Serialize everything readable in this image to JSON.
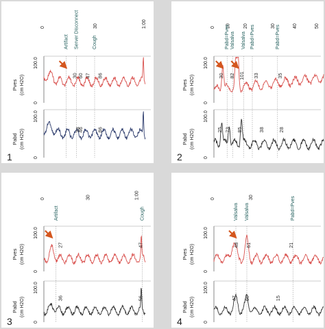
{
  "colors": {
    "pves": "#d9524f",
    "pabd_blue": "#2b3a6b",
    "pabd_dark": "#333333",
    "grid": "#666666",
    "event_label": "#1f5c5a",
    "number_label": "#333333",
    "arrow": "#d4561e"
  },
  "axis_titles": {
    "pves": [
      "Pves",
      "(cm H2O)"
    ],
    "pabd": [
      "Pabd",
      "(cm H2O)"
    ],
    "scale": "100.0",
    "scale_zero": "0"
  },
  "chart_data": [
    {
      "type": "line",
      "panel_label": "1",
      "time_ticks": [
        "0",
        "30",
        "1:00"
      ],
      "events": [
        "Artifact",
        "Server Disconnect",
        "Cough"
      ],
      "series": [
        {
          "name": "Pves",
          "values": [
            30,
            60,
            47,
            86
          ]
        },
        {
          "name": "Pabd",
          "values": [
            38,
            46,
            86
          ]
        }
      ],
      "has_arrow": true
    },
    {
      "type": "line",
      "panel_label": "2",
      "time_ticks": [
        "0",
        "10",
        "20",
        "30",
        "40",
        "50"
      ],
      "events": [
        "Pabd=Pves",
        "Valsalva",
        "Valsalva",
        "Pabd=Pves",
        "Pabd=Pves"
      ],
      "series": [
        {
          "name": "Pves",
          "values": [
            30,
            82,
            101,
            33,
            35
          ]
        },
        {
          "name": "Pabd",
          "values": [
            25,
            73,
            85,
            38,
            28
          ]
        }
      ],
      "has_arrow": true
    },
    {
      "type": "line",
      "panel_label": "3",
      "time_ticks": [
        "0",
        "30",
        "1:00"
      ],
      "events": [
        "Artifact",
        "Cough"
      ],
      "series": [
        {
          "name": "Pves",
          "values": [
            27,
            47
          ]
        },
        {
          "name": "Pabd",
          "values": [
            36,
            56
          ]
        }
      ],
      "has_arrow": true
    },
    {
      "type": "line",
      "panel_label": "4",
      "time_ticks": [
        "0",
        "30"
      ],
      "events": [
        "Valsalva",
        "Valsalva",
        "Pabd=Pves"
      ],
      "series": [
        {
          "name": "Pves",
          "values": [
            48,
            61,
            21
          ]
        },
        {
          "name": "Pabd",
          "values": [
            47,
            60,
            15
          ]
        }
      ],
      "has_arrow": true
    }
  ]
}
